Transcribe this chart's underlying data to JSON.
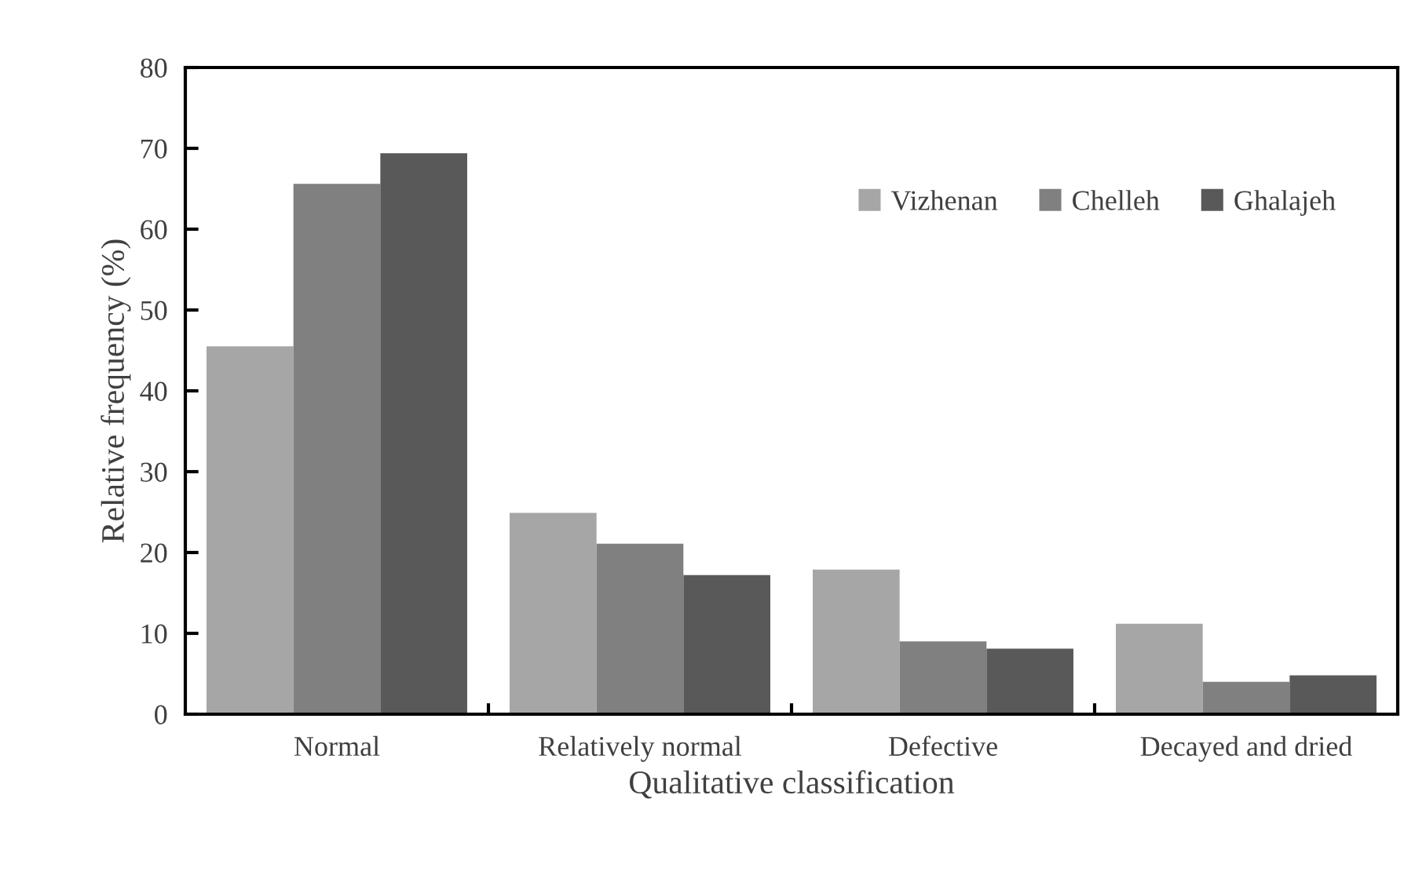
{
  "chart_data": {
    "type": "bar",
    "xlabel": "Qualitative classification",
    "ylabel": "Relative frequency (%)",
    "categories": [
      "Normal",
      "Relatively normal",
      "Defective",
      "Decayed and dried"
    ],
    "series": [
      {
        "name": "Vizhenan",
        "color": "#a6a6a6",
        "values": [
          45.5,
          24.9,
          17.9,
          11.2
        ]
      },
      {
        "name": "Chelleh",
        "color": "#808080",
        "values": [
          65.6,
          21.1,
          9.0,
          4.0
        ]
      },
      {
        "name": "Ghalajeh",
        "color": "#595959",
        "values": [
          69.4,
          17.2,
          8.1,
          4.8
        ]
      }
    ],
    "ylim": [
      0,
      80
    ],
    "yticks": [
      0,
      10,
      20,
      30,
      40,
      50,
      60,
      70,
      80
    ],
    "grid": false,
    "legend": "top right"
  }
}
